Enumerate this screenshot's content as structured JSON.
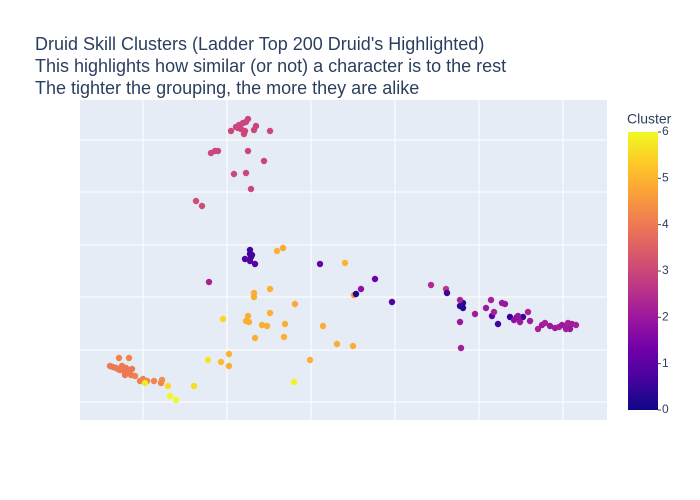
{
  "chart_data": {
    "type": "scatter",
    "title": [
      "Druid Skill Clusters (Ladder Top 200 Druid's Highlighted)",
      "This highlights how similar (or not) a character is to the rest",
      "The tighter the grouping, the more they are alike"
    ],
    "x": [
      151,
      156,
      159,
      161,
      163,
      166,
      168,
      165,
      158,
      164,
      174,
      176,
      190,
      131,
      135,
      138,
      168,
      184,
      154,
      166,
      171,
      116,
      122,
      129,
      351,
      366,
      30,
      33,
      36,
      38,
      40,
      42,
      44,
      46,
      48,
      50,
      52,
      39,
      49,
      45,
      51,
      55,
      60,
      63,
      67,
      74,
      81,
      82,
      203,
      197,
      265,
      190,
      174,
      174,
      215,
      190,
      168,
      166,
      169,
      182,
      187,
      205,
      243,
      175,
      204,
      257,
      273,
      149,
      230,
      149,
      274,
      141,
      143,
      128,
      65,
      88,
      114,
      90,
      96,
      214,
      170,
      170,
      171,
      172,
      165,
      170,
      175,
      240,
      295,
      276,
      312,
      367,
      383,
      380,
      383,
      418,
      430,
      437,
      443,
      412,
      281,
      380,
      395,
      406,
      411,
      414,
      422,
      425,
      434,
      438,
      440,
      450,
      448,
      380,
      381,
      458,
      462,
      465,
      470,
      475,
      479,
      482,
      486,
      488,
      490,
      492,
      496,
      486
    ],
    "y": [
      289,
      293,
      295,
      291,
      297,
      298,
      301,
      289,
      292,
      286,
      290,
      294,
      289,
      267,
      269,
      269,
      269,
      259,
      246,
      247,
      231,
      219,
      214,
      138,
      135,
      131,
      54,
      53,
      52,
      51,
      50,
      54,
      49,
      52,
      48,
      50,
      51,
      62,
      62,
      45,
      45,
      44,
      39,
      41,
      39,
      39,
      37,
      40,
      172,
      169,
      157,
      131,
      127,
      123,
      116,
      107,
      104,
      99,
      98,
      95,
      94,
      96,
      94,
      82,
      83,
      76,
      74,
      66,
      60,
      54,
      125,
      58,
      101,
      60,
      37,
      34,
      34,
      24,
      20,
      38,
      170,
      166,
      163,
      165,
      161,
      159,
      156,
      156,
      141,
      126,
      118,
      127,
      117,
      114,
      112,
      96,
      103,
      103,
      103,
      104,
      131,
      120,
      106,
      112,
      120,
      108,
      117,
      116,
      100,
      104,
      98,
      99,
      108,
      98,
      72,
      91,
      95,
      97,
      94,
      92,
      93,
      95,
      94,
      97,
      91,
      96,
      95,
      91
    ],
    "color_values": [
      3,
      3,
      3,
      3,
      3,
      3,
      3,
      3,
      3,
      3,
      3,
      3,
      3,
      3,
      3,
      3,
      3,
      3,
      3,
      3,
      3,
      3.1,
      3.1,
      2.2,
      2.4,
      2.6,
      4,
      4,
      4,
      4,
      4,
      4,
      4,
      4,
      4,
      4,
      4,
      4.2,
      4.2,
      4,
      4,
      4.1,
      4.1,
      4.2,
      4.2,
      4.2,
      4.2,
      4.3,
      4.8,
      5,
      5,
      4.9,
      4.9,
      4.9,
      4.8,
      4.9,
      4.9,
      4.9,
      4.9,
      4.9,
      4.9,
      4.9,
      4.9,
      4.9,
      4.9,
      4.9,
      4.9,
      5,
      4.9,
      4.9,
      4.6,
      5.1,
      5.5,
      5.7,
      5.8,
      5.6,
      5.6,
      6,
      6,
      5.9,
      0.6,
      0.6,
      0.7,
      0.6,
      0.8,
      0.8,
      0.9,
      1.1,
      1.3,
      0.2,
      0.8,
      0.5,
      0.4,
      0.4,
      0.3,
      0.6,
      0.4,
      0.8,
      0.5,
      1,
      1.8,
      2.2,
      2.1,
      2,
      2.2,
      2.2,
      2,
      2,
      1.8,
      1.9,
      2,
      2.1,
      2.2,
      2,
      2.1,
      2.2,
      2.1,
      2.2,
      2,
      2.1,
      2.2,
      2,
      2.1,
      2.2,
      2,
      2.1,
      2.2,
      2.1
    ],
    "colorscale": [
      [
        0,
        "#0d0887"
      ],
      [
        0.111,
        "#46039f"
      ],
      [
        0.222,
        "#7201a8"
      ],
      [
        0.333,
        "#9c179e"
      ],
      [
        0.444,
        "#bd3786"
      ],
      [
        0.556,
        "#d8576b"
      ],
      [
        0.667,
        "#ed7953"
      ],
      [
        0.778,
        "#fb9f3a"
      ],
      [
        0.889,
        "#fdca26"
      ],
      [
        1,
        "#f0f921"
      ]
    ],
    "colorbar": {
      "title": "Cluster",
      "range": [
        0,
        6
      ],
      "ticks": [
        0,
        1,
        2,
        3,
        4,
        5,
        6
      ]
    },
    "xlim": [
      0,
      527
    ],
    "ylim": [
      0,
      320
    ],
    "xticks": [
      63,
      147,
      231,
      315,
      399,
      483
    ],
    "yticks": [
      18,
      70,
      123,
      175,
      228,
      280
    ],
    "grid": true
  }
}
